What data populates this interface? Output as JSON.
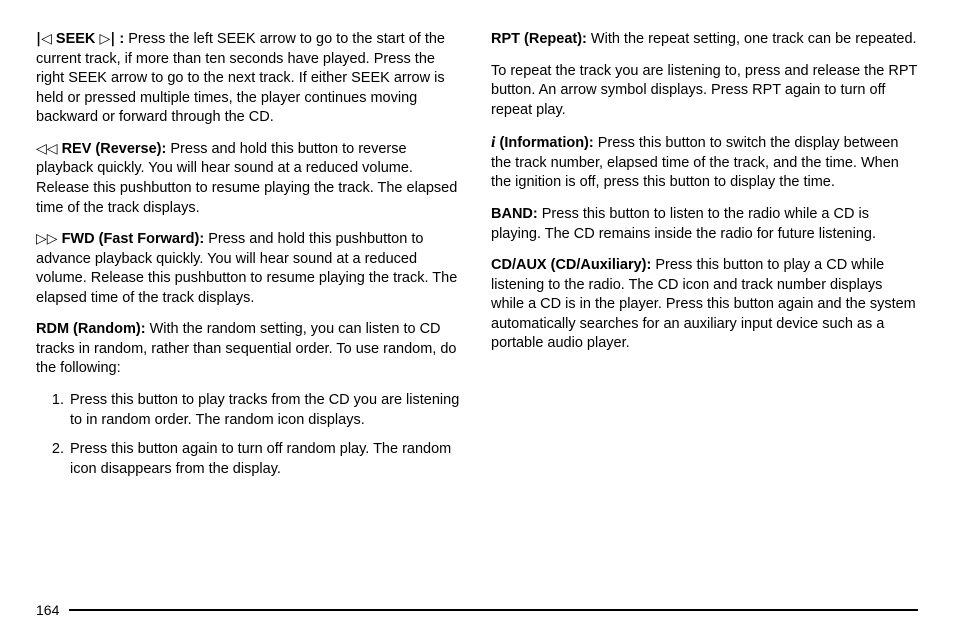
{
  "page_number": "164",
  "left": {
    "seek": {
      "prev_glyph": "|◁",
      "label": "SEEK",
      "next_glyph": "▷|",
      "colon": " :",
      "body": "  Press the left SEEK arrow to go to the start of the current track, if more than ten seconds have played. Press the right SEEK arrow to go to the next track. If either SEEK arrow is held or pressed multiple times, the player continues moving backward or forward through the CD."
    },
    "rev": {
      "glyph": "◁◁",
      "label": " REV (Reverse):",
      "body": "  Press and hold this button to reverse playback quickly. You will hear sound at a reduced volume. Release this pushbutton to resume playing the track. The elapsed time of the track displays."
    },
    "fwd": {
      "glyph": "▷▷",
      "label": " FWD (Fast Forward):",
      "body": "  Press and hold this pushbutton to advance playback quickly. You will hear sound at a reduced volume. Release this pushbutton to resume playing the track. The elapsed time of the track displays."
    },
    "rdm": {
      "label": "RDM (Random):",
      "body": "  With the random setting, you can listen to CD tracks in random, rather than sequential order. To use random, do the following:"
    },
    "steps": {
      "s1": "Press this button to play tracks from the CD you are listening to in random order. The random icon displays.",
      "s2": "Press this button again to turn off random play. The random icon disappears from the display."
    }
  },
  "right": {
    "rpt": {
      "label": "RPT (Repeat):",
      "body": "  With the repeat setting, one track can be repeated."
    },
    "rpt2": "To repeat the track you are listening to, press and release the RPT button. An arrow symbol displays. Press RPT again to turn off repeat play.",
    "info": {
      "glyph": "i",
      "label": " (Information):",
      "body": "  Press this button to switch the display between the track number, elapsed time of the track, and the time. When the ignition is off, press this button to display the time."
    },
    "band": {
      "label": "BAND:",
      "body": "  Press this button to listen to the radio while a CD is playing. The CD remains inside the radio for future listening."
    },
    "cdaux": {
      "label": "CD/AUX (CD/Auxiliary):",
      "body": "  Press this button to play a CD while listening to the radio. The CD icon and track number displays while a CD is in the player. Press this button again and the system automatically searches for an auxiliary input device such as a portable audio player."
    }
  }
}
